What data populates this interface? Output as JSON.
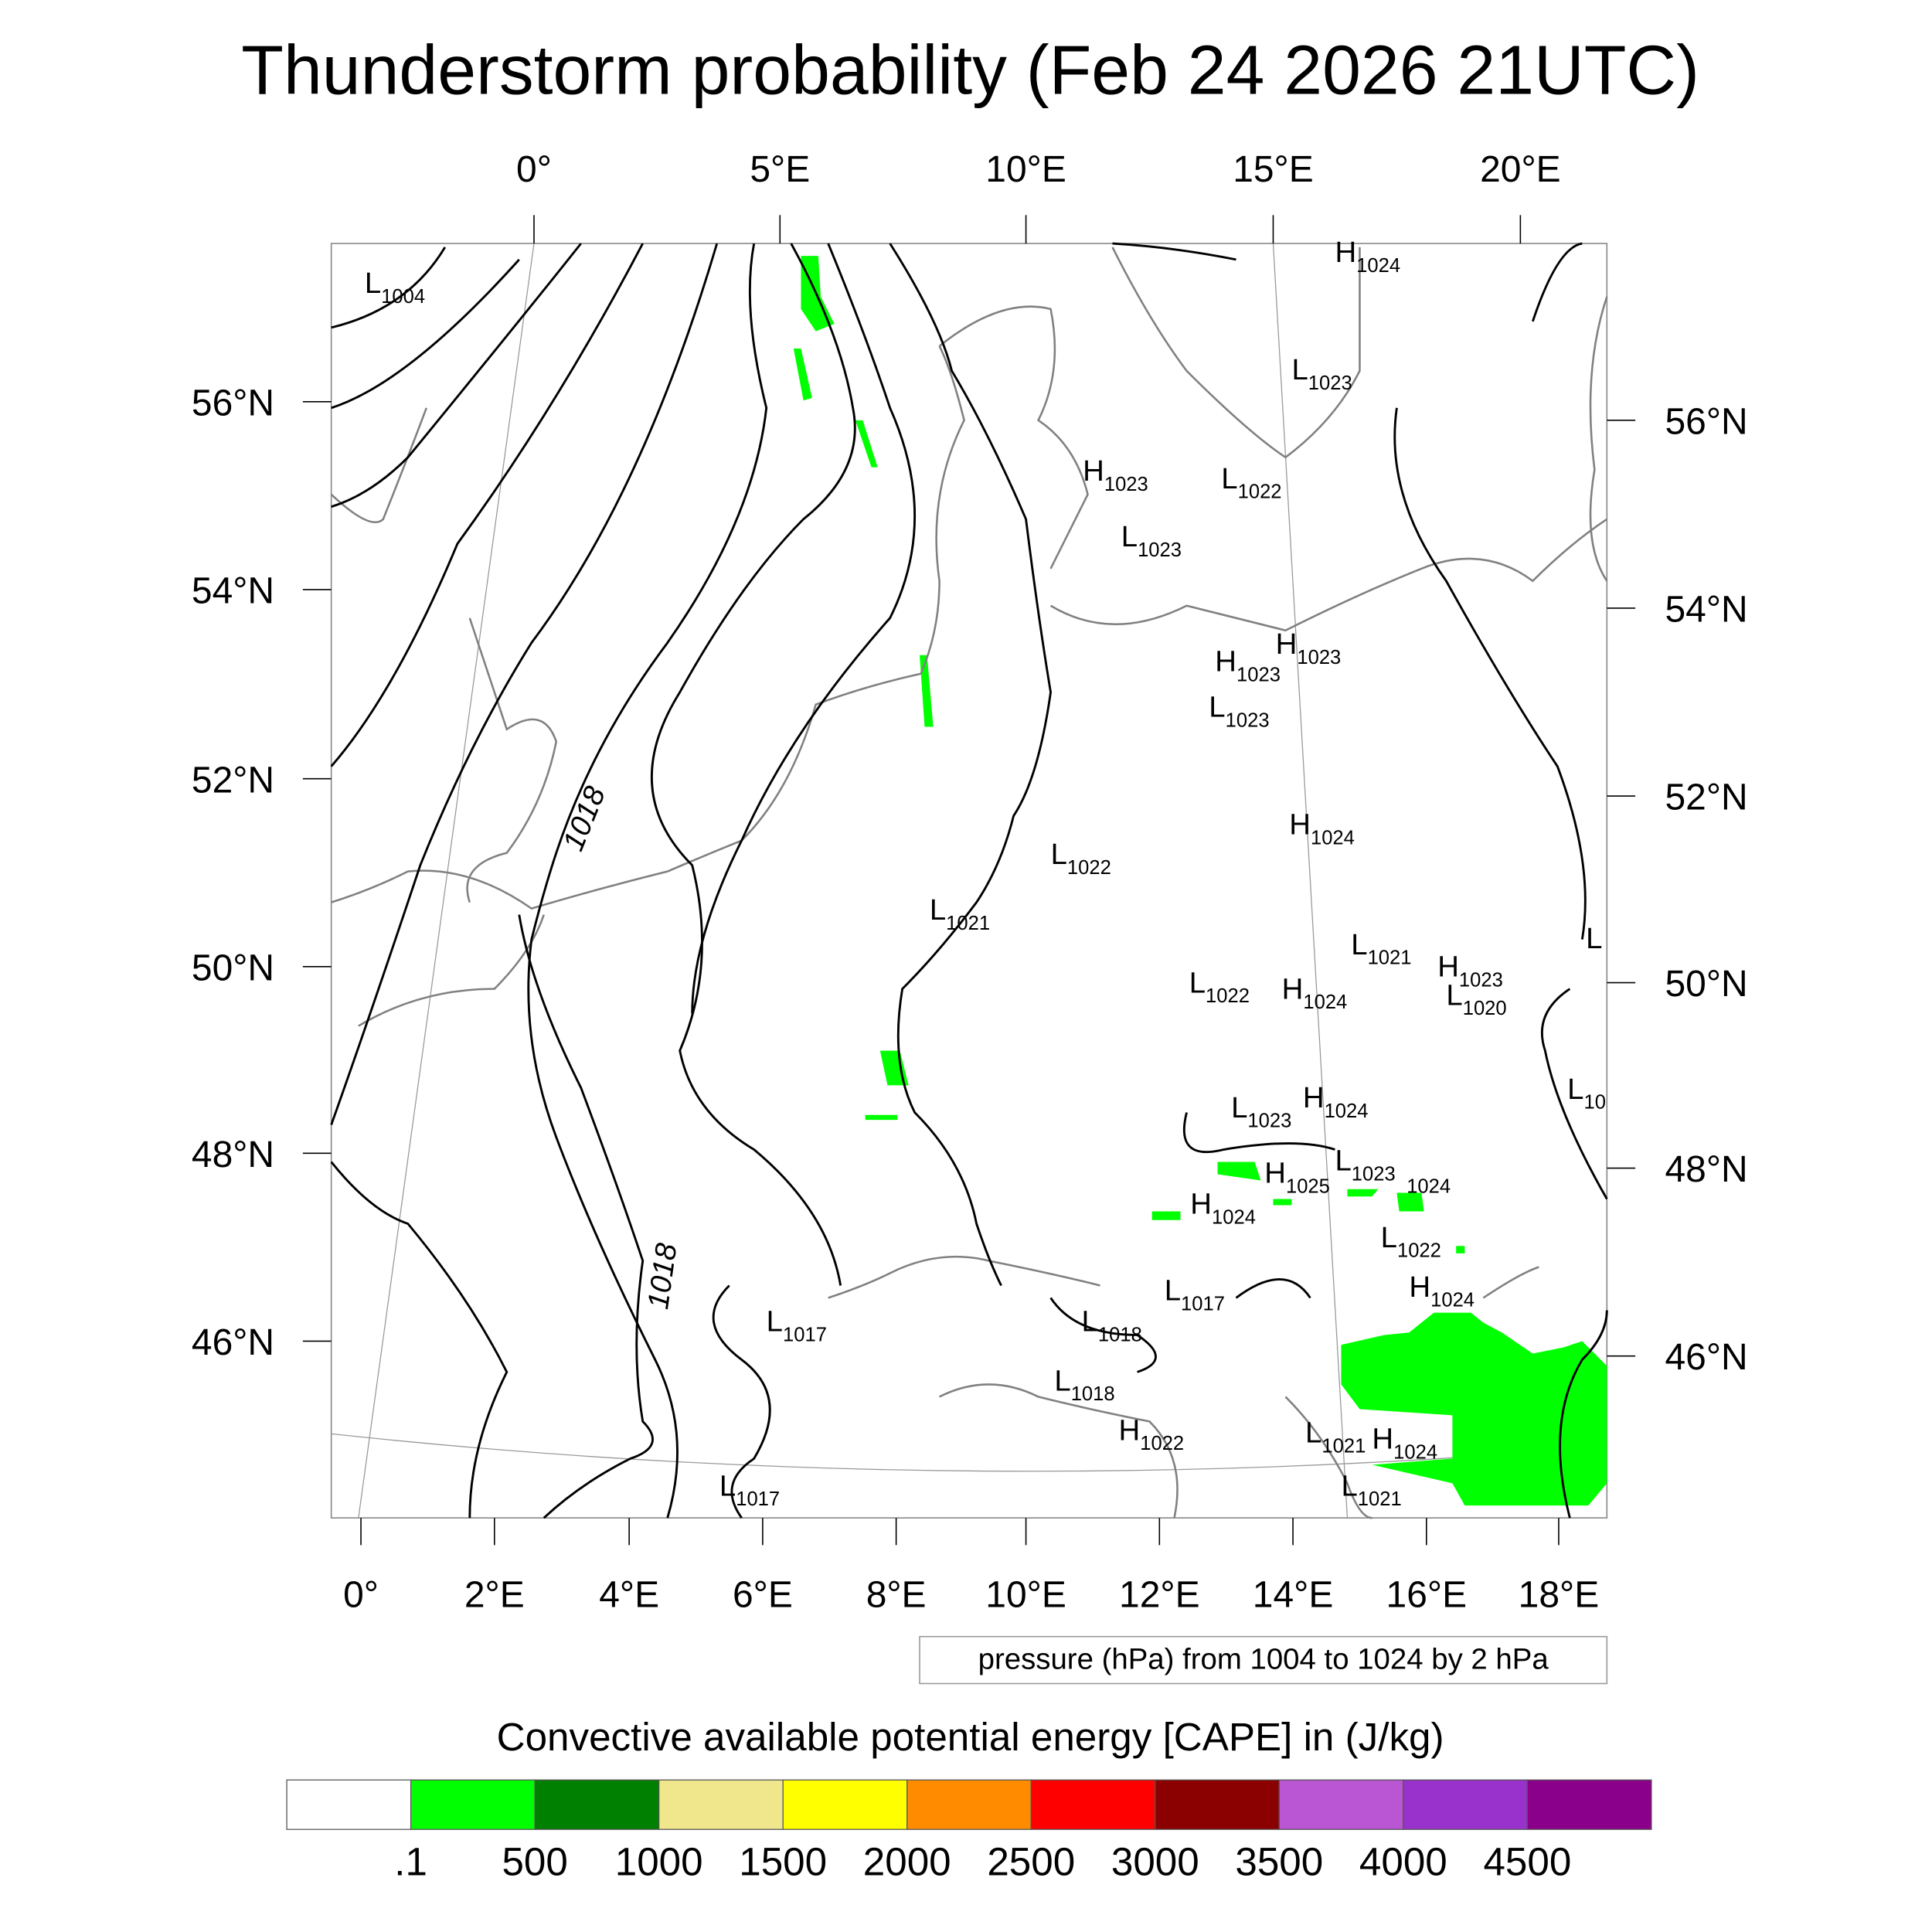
{
  "chart_data": {
    "type": "heatmap",
    "title": "Thunderstorm probability (Feb 24 2026 21UTC)",
    "top_lon_ticks": [
      "0°",
      "5°E",
      "10°E",
      "15°E",
      "20°E"
    ],
    "bottom_lon_ticks": [
      "0°",
      "2°E",
      "4°E",
      "6°E",
      "8°E",
      "10°E",
      "12°E",
      "14°E",
      "16°E",
      "18°E"
    ],
    "left_lat_ticks": [
      "56°N",
      "54°N",
      "52°N",
      "50°N",
      "48°N",
      "46°N"
    ],
    "right_lat_ticks": [
      "56°N",
      "54°N",
      "52°N",
      "50°N",
      "48°N",
      "46°N"
    ],
    "contour_info": "pressure (hPa) from 1004 to 1024 by 2 hPa",
    "contour_line_labels": [
      "1018",
      "1018"
    ],
    "pressure_centers": [
      {
        "type": "L",
        "value": "1004"
      },
      {
        "type": "H",
        "value": "1024"
      },
      {
        "type": "L",
        "value": "1023"
      },
      {
        "type": "H",
        "value": "1023"
      },
      {
        "type": "L",
        "value": "1022"
      },
      {
        "type": "L",
        "value": "1023"
      },
      {
        "type": "H",
        "value": "1023"
      },
      {
        "type": "H",
        "value": "1023"
      },
      {
        "type": "L",
        "value": "1023"
      },
      {
        "type": "H",
        "value": "1024"
      },
      {
        "type": "L",
        "value": "1022"
      },
      {
        "type": "L",
        "value": "1021"
      },
      {
        "type": "L",
        "value": "1021"
      },
      {
        "type": "H",
        "value": "1023"
      },
      {
        "type": "L",
        "value": "1020"
      },
      {
        "type": "L",
        "value": "1022"
      },
      {
        "type": "H",
        "value": "1024"
      },
      {
        "type": "L",
        "value": ""
      },
      {
        "type": "L",
        "value": "10"
      },
      {
        "type": "L",
        "value": "1023"
      },
      {
        "type": "H",
        "value": "1024"
      },
      {
        "type": "H",
        "value": "1025"
      },
      {
        "type": "L",
        "value": "1023"
      },
      {
        "type": "",
        "value": "1024"
      },
      {
        "type": "H",
        "value": "1024"
      },
      {
        "type": "L",
        "value": "1022"
      },
      {
        "type": "H",
        "value": "1024"
      },
      {
        "type": "L",
        "value": "1017"
      },
      {
        "type": "L",
        "value": "1017"
      },
      {
        "type": "L",
        "value": "1018"
      },
      {
        "type": "L",
        "value": "1018"
      },
      {
        "type": "H",
        "value": "1022"
      },
      {
        "type": "L",
        "value": "1021"
      },
      {
        "type": "H",
        "value": "1024"
      },
      {
        "type": "L",
        "value": "1021"
      },
      {
        "type": "L",
        "value": "1017"
      }
    ],
    "colorbar": {
      "title": "Convective available potential energy [CAPE] in (J/kg)",
      "labels": [
        ".1",
        "500",
        "1000",
        "1500",
        "2000",
        "2500",
        "3000",
        "3500",
        "4000",
        "4500"
      ],
      "colors": [
        "#ffffff",
        "#00ff00",
        "#008000",
        "#f0e68c",
        "#ffff00",
        "#ff8c00",
        "#ff0000",
        "#8b0000",
        "#ba55d3",
        "#9932cc",
        "#8b008b"
      ]
    },
    "cape_field_color": "#00ff00"
  }
}
